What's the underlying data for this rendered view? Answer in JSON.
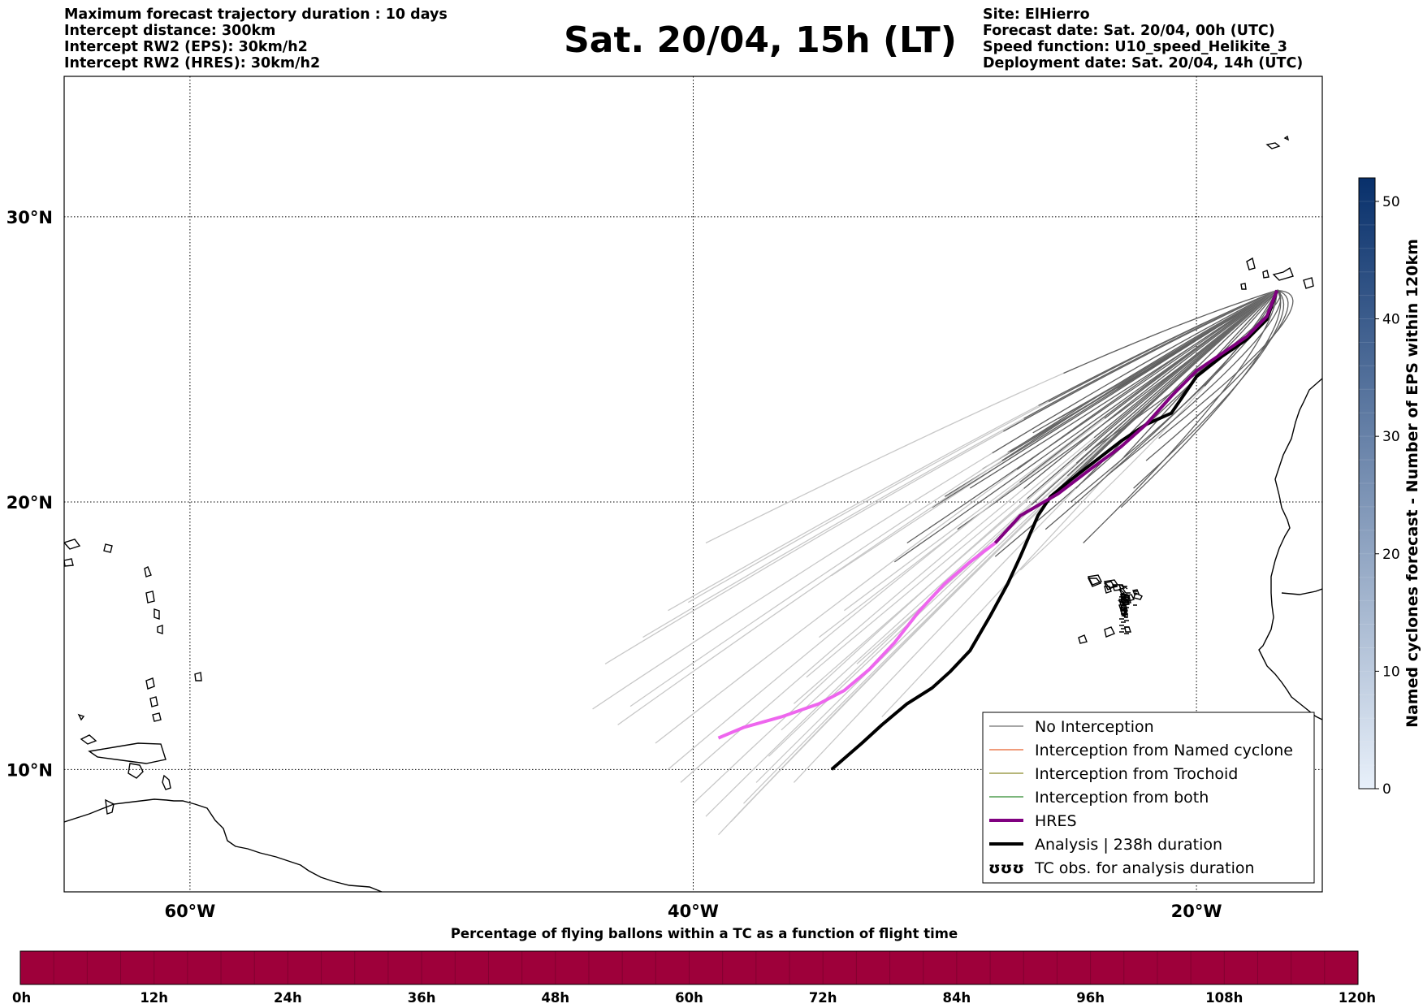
{
  "header": {
    "left_lines": [
      "Maximum forecast trajectory duration : 10 days",
      "Intercept distance: 300km",
      "Intercept RW2 (EPS):  30km/h2",
      "Intercept RW2 (HRES): 30km/h2"
    ],
    "right_lines": [
      "Site: ElHierro",
      "Forecast date: Sat. 20/04, 00h (UTC)",
      "Speed function: U10_speed_Helikite_3",
      "Deployment date: Sat. 20/04, 14h (UTC)"
    ],
    "title": "Sat. 20/04, 15h (LT)"
  },
  "map": {
    "lon_range": [
      -65,
      -15
    ],
    "lat_range": [
      5.3,
      34.6
    ],
    "lat_labels": [
      "30°N",
      "20°N",
      "10°N"
    ],
    "lat_values": [
      30,
      20,
      10
    ],
    "lon_labels": [
      "60°W",
      "40°W",
      "20°W"
    ],
    "lon_values": [
      -60,
      -40,
      -20
    ],
    "gridlines": "dotted",
    "colors": {
      "eps_no_interception": "#606060",
      "eps_faded": "#c8c8c8",
      "hres": "#800080",
      "hres_late": "#ee66ee",
      "analysis": "#000000"
    }
  },
  "legend": {
    "placement": "bottom-right",
    "items": [
      {
        "label": "No Interception",
        "color": "#707070",
        "style": "thin"
      },
      {
        "label": "Interception from Named cyclone",
        "color": "#e8602c",
        "style": "thin"
      },
      {
        "label": "Interception from Trochoid",
        "color": "#8a8a2a",
        "style": "thin"
      },
      {
        "label": "Interception from both",
        "color": "#2e8b2e",
        "style": "thin"
      },
      {
        "label": "HRES",
        "color": "#800080",
        "style": "thick"
      },
      {
        "label": "Analysis | 238h duration",
        "color": "#000000",
        "style": "thick"
      },
      {
        "label": "TC obs. for analysis duration",
        "color": "#000000",
        "style": "symbol",
        "symbol": "ʊʊʊ"
      }
    ]
  },
  "colorbar_right": {
    "label": "Named cyclones forecast - Number of EPS within 120km",
    "ticks": [
      0,
      10,
      20,
      30,
      40,
      50
    ],
    "max": 52,
    "color_low": "#e8f0fa",
    "color_high": "#08306b"
  },
  "colorbar_bottom": {
    "title": "Percentage of flying ballons within a TC as a function of flight time",
    "ticks": [
      "0h",
      "12h",
      "24h",
      "36h",
      "48h",
      "60h",
      "72h",
      "84h",
      "96h",
      "108h",
      "120h"
    ],
    "fill_color": "#9e003a"
  },
  "chart_data": {
    "type": "line",
    "hres_track": [
      [
        -16.8,
        27.5
      ],
      [
        -17.2,
        26.6
      ],
      [
        -18.0,
        25.9
      ],
      [
        -19.0,
        25.3
      ],
      [
        -20.0,
        24.7
      ],
      [
        -21.0,
        23.8
      ],
      [
        -22.0,
        22.8
      ],
      [
        -23.0,
        22.0
      ],
      [
        -24.2,
        21.2
      ],
      [
        -25.5,
        20.3
      ],
      [
        -27.0,
        19.5
      ],
      [
        -28.0,
        18.5
      ],
      [
        -29.0,
        17.8
      ],
      [
        -30.0,
        17.0
      ],
      [
        -31.0,
        16.0
      ],
      [
        -32.0,
        14.8
      ],
      [
        -33.0,
        13.8
      ],
      [
        -34.0,
        13.0
      ],
      [
        -35.0,
        12.5
      ],
      [
        -36.5,
        12.0
      ],
      [
        -38.0,
        11.6
      ],
      [
        -39.0,
        11.2
      ]
    ],
    "hres_split_index": 11,
    "analysis_track": [
      [
        -16.8,
        27.5
      ],
      [
        -17.2,
        26.5
      ],
      [
        -18.0,
        25.8
      ],
      [
        -19.0,
        25.2
      ],
      [
        -20.0,
        24.5
      ],
      [
        -21.0,
        23.2
      ],
      [
        -22.0,
        22.8
      ],
      [
        -23.0,
        22.2
      ],
      [
        -24.0,
        21.5
      ],
      [
        -25.0,
        20.8
      ],
      [
        -25.8,
        20.2
      ],
      [
        -26.3,
        19.5
      ],
      [
        -27.0,
        18.0
      ],
      [
        -27.5,
        17.0
      ],
      [
        -28.2,
        15.8
      ],
      [
        -29.0,
        14.5
      ],
      [
        -29.8,
        13.7
      ],
      [
        -30.5,
        13.1
      ],
      [
        -31.5,
        12.5
      ],
      [
        -32.5,
        11.7
      ],
      [
        -33.3,
        11.0
      ],
      [
        -34.5,
        10.0
      ]
    ],
    "eps_endpoints": [
      [
        -39.5,
        18.5
      ],
      [
        -40.2,
        16.3
      ],
      [
        -41.0,
        16.0
      ],
      [
        -42.0,
        15.0
      ],
      [
        -42.5,
        12.4
      ],
      [
        -43.0,
        11.7
      ],
      [
        -41.5,
        11.0
      ],
      [
        -41.0,
        10.0
      ],
      [
        -40.5,
        9.5
      ],
      [
        -40.0,
        8.7
      ],
      [
        -39.5,
        8.2
      ],
      [
        -39.0,
        7.5
      ],
      [
        -38.5,
        8.0
      ],
      [
        -38.0,
        8.7
      ],
      [
        -37.5,
        9.5
      ],
      [
        -37.0,
        10.5
      ],
      [
        -36.5,
        11.5
      ],
      [
        -36.0,
        12.5
      ],
      [
        -35.5,
        13.5
      ],
      [
        -35.0,
        15.0
      ],
      [
        -34.5,
        17.3
      ],
      [
        -34.0,
        16.0
      ],
      [
        -33.5,
        14.0
      ],
      [
        -32.5,
        12.0
      ],
      [
        -32.0,
        17.8
      ],
      [
        -31.5,
        18.5
      ],
      [
        -30.5,
        19.8
      ],
      [
        -30.0,
        20.2
      ],
      [
        -29.5,
        19.0
      ],
      [
        -29.0,
        20.5
      ],
      [
        -28.5,
        21.2
      ],
      [
        -28.0,
        18.0
      ],
      [
        -27.5,
        21.8
      ],
      [
        -27.0,
        17.5
      ],
      [
        -26.5,
        22.5
      ],
      [
        -26.0,
        19.0
      ],
      [
        -25.5,
        23.0
      ],
      [
        -25.0,
        20.0
      ],
      [
        -24.5,
        18.5
      ],
      [
        -24.0,
        22.0
      ],
      [
        -23.5,
        21.0
      ],
      [
        -23.0,
        19.8
      ],
      [
        -22.5,
        20.5
      ],
      [
        -22.0,
        21.5
      ],
      [
        -21.5,
        22.3
      ],
      [
        -44.0,
        12.3
      ],
      [
        -43.5,
        14.0
      ],
      [
        -36.0,
        9.5
      ]
    ],
    "eps_dark_count": 18
  }
}
